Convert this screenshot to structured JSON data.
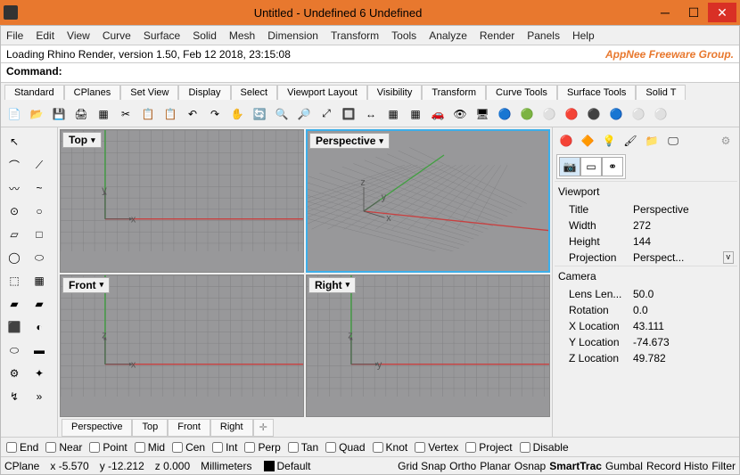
{
  "window": {
    "title": "Untitled - Undefined 6 Undefined"
  },
  "menubar": [
    "File",
    "Edit",
    "View",
    "Curve",
    "Surface",
    "Solid",
    "Mesh",
    "Dimension",
    "Transform",
    "Tools",
    "Analyze",
    "Render",
    "Panels",
    "Help"
  ],
  "info_line": "Loading Rhino Render, version 1.50, Feb 12 2018, 23:15:08",
  "brand": "AppNee Freeware Group.",
  "command_label": "Command:",
  "tooltabs": [
    "Standard",
    "CPlanes",
    "Set View",
    "Display",
    "Select",
    "Viewport Layout",
    "Visibility",
    "Transform",
    "Curve Tools",
    "Surface Tools",
    "Solid T"
  ],
  "viewports": {
    "top": "Top",
    "perspective": "Perspective",
    "front": "Front",
    "right": "Right",
    "active": "perspective",
    "axis_color_x": "#c84040",
    "axis_color_y": "#40a040",
    "label_color": "#555",
    "bg": "#98989a",
    "grid": "#808082"
  },
  "vptabs": [
    "Perspective",
    "Top",
    "Front",
    "Right"
  ],
  "rpanel": {
    "viewport_section": "Viewport",
    "camera_section": "Camera",
    "title_prop": "Title",
    "title_val": "Perspective",
    "width_prop": "Width",
    "width_val": "272",
    "height_prop": "Height",
    "height_val": "144",
    "proj_prop": "Projection",
    "proj_val": "Perspect...",
    "lens_prop": "Lens Len...",
    "lens_val": "50.0",
    "rot_prop": "Rotation",
    "rot_val": "0.0",
    "xloc_prop": "X Location",
    "xloc_val": "43.111",
    "yloc_prop": "Y Location",
    "yloc_val": "-74.673",
    "zloc_prop": "Z Location",
    "zloc_val": "49.782"
  },
  "osnap": {
    "items": [
      "End",
      "Near",
      "Point",
      "Mid",
      "Cen",
      "Int",
      "Perp",
      "Tan",
      "Quad",
      "Knot",
      "Vertex",
      "Project",
      "Disable"
    ]
  },
  "status": {
    "left": [
      "CPlane",
      "x -5.570",
      "y -12.212",
      "z 0.000",
      "Millimeters",
      "Default"
    ],
    "right": [
      "Grid Snap",
      "Ortho",
      "Planar",
      "Osnap",
      "SmartTrac",
      "Gumbal",
      "Record Histo",
      "Filter"
    ],
    "bold_right": "SmartTrac"
  }
}
